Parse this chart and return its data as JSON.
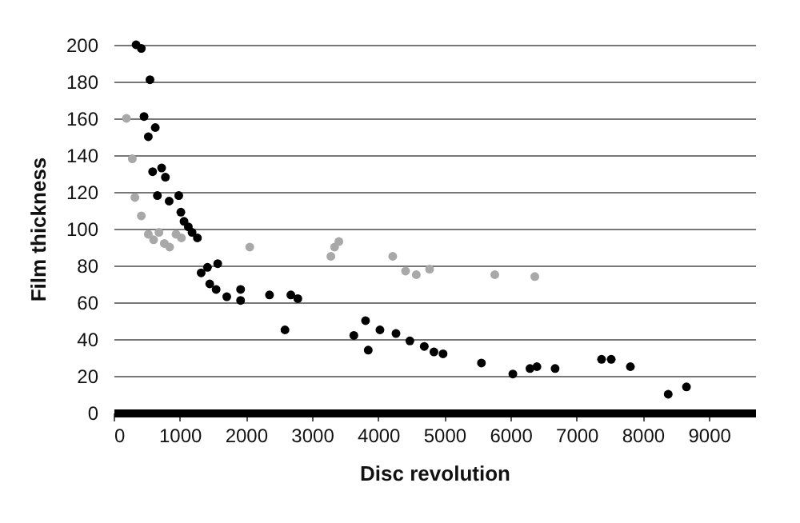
{
  "chart_data": {
    "type": "scatter",
    "xlabel": "Disc revolution",
    "ylabel": "Film thickness",
    "xlim": [
      0,
      9700
    ],
    "xticks": [
      0,
      1000,
      2000,
      3000,
      4000,
      5000,
      6000,
      7000,
      8000,
      9000
    ],
    "ylim": [
      0,
      200
    ],
    "yticks": [
      0,
      20,
      40,
      60,
      80,
      100,
      120,
      140,
      160,
      180,
      200
    ],
    "grid": "y",
    "legend": false,
    "marker": "circle",
    "series": [
      {
        "color": "#000000",
        "x": [
          340,
          419,
          550,
          460,
          630,
          525,
          590,
          726,
          783,
          662,
          840,
          985,
          1017,
          1065,
          1130,
          1186,
          1267,
          1324,
          1419,
          1574,
          1453,
          1550,
          1711,
          1920,
          1920,
          2357,
          2591,
          2680,
          2785,
          3632,
          3809,
          3850,
          4027,
          4269,
          4479,
          4697,
          4843,
          4981,
          5561,
          6036,
          6295,
          6400,
          6675,
          7377,
          7523,
          7813,
          8385,
          8661
        ],
        "values": [
          200,
          198,
          181,
          161,
          155,
          150,
          131,
          133,
          128,
          118,
          115,
          118,
          109,
          104,
          101,
          98,
          95,
          76,
          79,
          81,
          70,
          67,
          63,
          67,
          61,
          64,
          45,
          64,
          62,
          42,
          50,
          34,
          45,
          43,
          39,
          36,
          33,
          32,
          27,
          21,
          24,
          25,
          24,
          29,
          29,
          25,
          10,
          14
        ]
      },
      {
        "color": "#a8a8a8",
        "x": [
          194,
          283,
          322,
          419,
          525,
          605,
          686,
          767,
          847,
          944,
          1025,
          2058,
          3285,
          3341,
          3406,
          4220,
          4414,
          4576,
          4777,
          5763,
          6368
        ],
        "values": [
          160,
          138,
          117,
          107,
          97,
          94,
          98,
          92,
          90,
          97,
          95,
          90,
          85,
          90,
          93,
          85,
          77,
          75,
          78,
          75,
          74
        ]
      }
    ]
  }
}
